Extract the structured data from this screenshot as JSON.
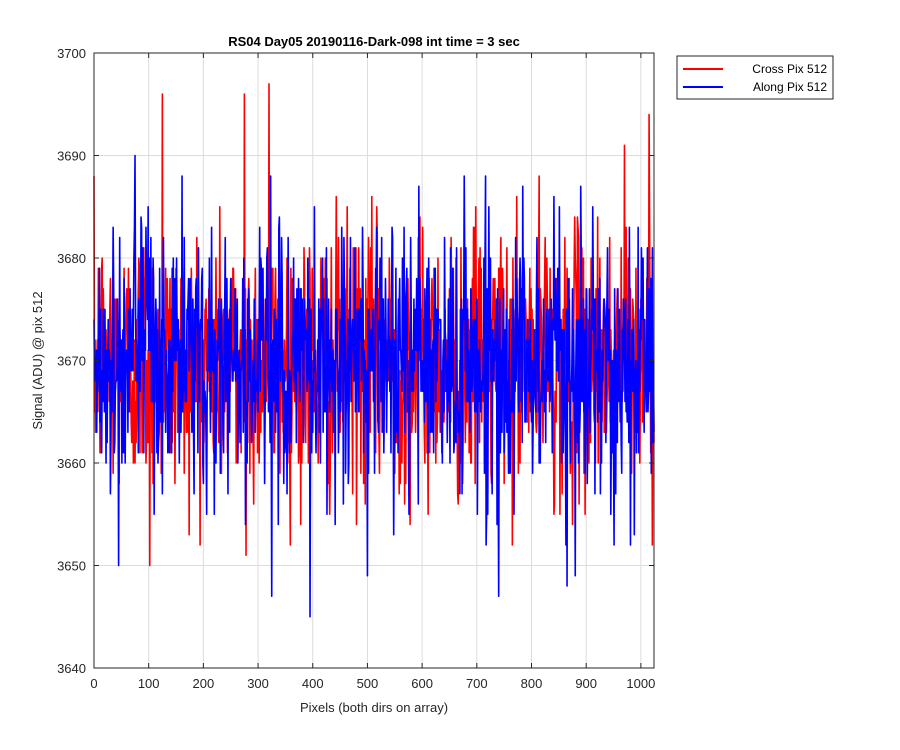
{
  "chart_data": {
    "type": "line",
    "title": "RS04 Day05 20190116-Dark-098 int time = 3 sec",
    "xlabel": "Pixels (both dirs on array)",
    "ylabel": "Signal (ADU) @ pix 512",
    "xlim": [
      0,
      1024
    ],
    "ylim": [
      3640,
      3700
    ],
    "xticks": [
      0,
      100,
      200,
      300,
      400,
      500,
      600,
      700,
      800,
      900,
      1000
    ],
    "yticks": [
      3640,
      3650,
      3660,
      3670,
      3680,
      3690,
      3700
    ],
    "grid": true,
    "legend_position": "outside-top-right",
    "series_mean": 3670,
    "series": [
      {
        "name": "Cross Pix 512",
        "color": "#ff0000",
        "notable_points": [
          {
            "x": 125,
            "y": 3696
          },
          {
            "x": 275,
            "y": 3696
          },
          {
            "x": 320,
            "y": 3697
          },
          {
            "x": 970,
            "y": 3691
          },
          {
            "x": 1015,
            "y": 3694
          },
          {
            "x": 102,
            "y": 3650
          },
          {
            "x": 278,
            "y": 3651
          }
        ]
      },
      {
        "name": "Along Pix 512",
        "color": "#0000ff",
        "notable_points": [
          {
            "x": 75,
            "y": 3690
          },
          {
            "x": 395,
            "y": 3645
          },
          {
            "x": 325,
            "y": 3647
          },
          {
            "x": 740,
            "y": 3647
          },
          {
            "x": 500,
            "y": 3649
          },
          {
            "x": 865,
            "y": 3648
          },
          {
            "x": 880,
            "y": 3649
          },
          {
            "x": 45,
            "y": 3650
          }
        ]
      }
    ]
  }
}
